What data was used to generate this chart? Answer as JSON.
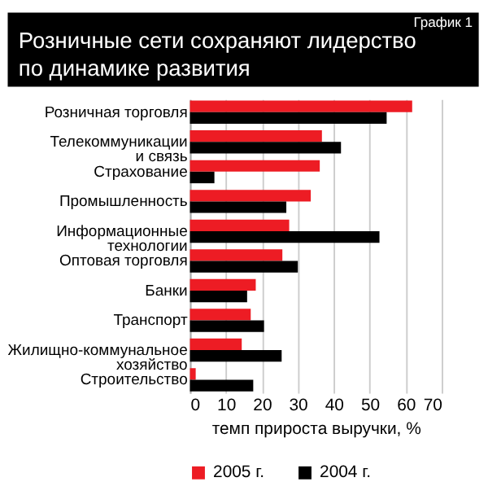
{
  "chart_data": {
    "type": "bar",
    "orientation": "horizontal",
    "title": "Розничные сети сохраняют лидерство\nпо динамике развития",
    "annotations": [
      "График 1"
    ],
    "xlabel": "темп прироста выручки, %",
    "categories": [
      "Розничная торговля",
      "Телекоммуникации\nи связь",
      "Страхование",
      "Промышленность",
      "Информационные\nтехнологии",
      "Оптовая торговля",
      "Банки",
      "Транспорт",
      "Жилищно-коммунальное\nхозяйство",
      "Строительство"
    ],
    "series": [
      {
        "name": "2005 г.",
        "color": "#ed1c24",
        "values": [
          61.8,
          36.7,
          36.1,
          33.6,
          27.6,
          25.7,
          18.3,
          16.9,
          14.4,
          1.6
        ]
      },
      {
        "name": "2004 г.",
        "color": "#000000",
        "values": [
          54.7,
          42,
          6.8,
          26.8,
          52.7,
          30,
          15.9,
          20.6,
          25.5,
          17.6
        ]
      }
    ],
    "xlim": [
      0,
      70
    ],
    "xticks": [
      0,
      10,
      20,
      30,
      40,
      50,
      60,
      70
    ],
    "grid": "x",
    "legend": "bottom"
  }
}
